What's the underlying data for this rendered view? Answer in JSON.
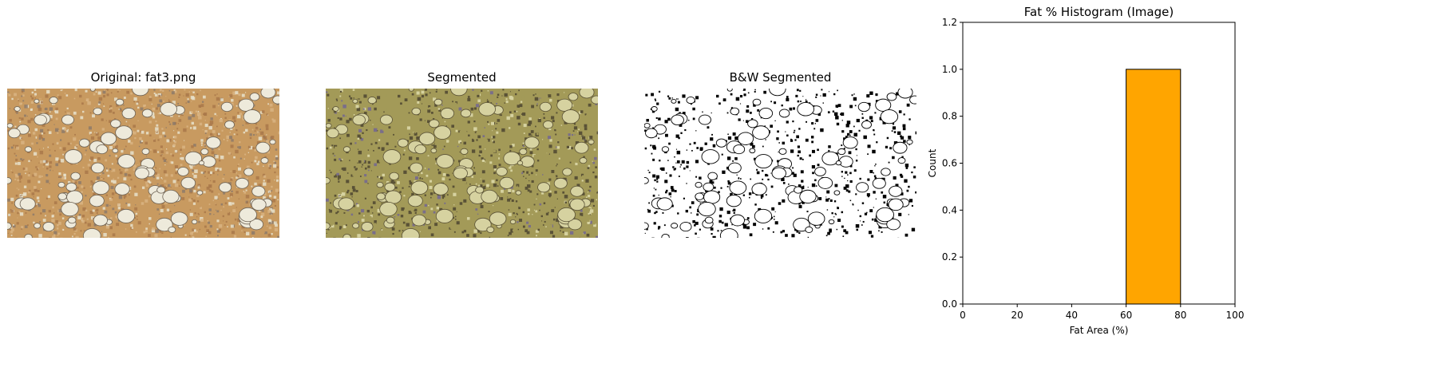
{
  "panels": {
    "original": {
      "title": "Original: fat3.png"
    },
    "segmented": {
      "title": "Segmented"
    },
    "bw": {
      "title": "B&W Segmented"
    }
  },
  "colors": {
    "tissue_orange": "#c89a60",
    "tissue_light": "#e8e2cc",
    "seg_dark": "#5a5236",
    "seg_olive": "#a39a58",
    "seg_light": "#d6d2a0",
    "bar_fill": "#ffa500",
    "bar_edge": "#000000"
  },
  "chart_data": {
    "type": "bar",
    "title": "Fat % Histogram (Image)",
    "xlabel": "Fat Area (%)",
    "ylabel": "Count",
    "xlim": [
      0,
      100
    ],
    "ylim": [
      0,
      1.2
    ],
    "xticks": [
      "0",
      "20",
      "40",
      "60",
      "80",
      "100"
    ],
    "yticks": [
      "0.0",
      "0.2",
      "0.4",
      "0.6",
      "0.8",
      "1.0",
      "1.2"
    ],
    "bins": [
      {
        "range": [
          60,
          80
        ],
        "count": 1
      }
    ],
    "grid": false,
    "legend": "none"
  }
}
